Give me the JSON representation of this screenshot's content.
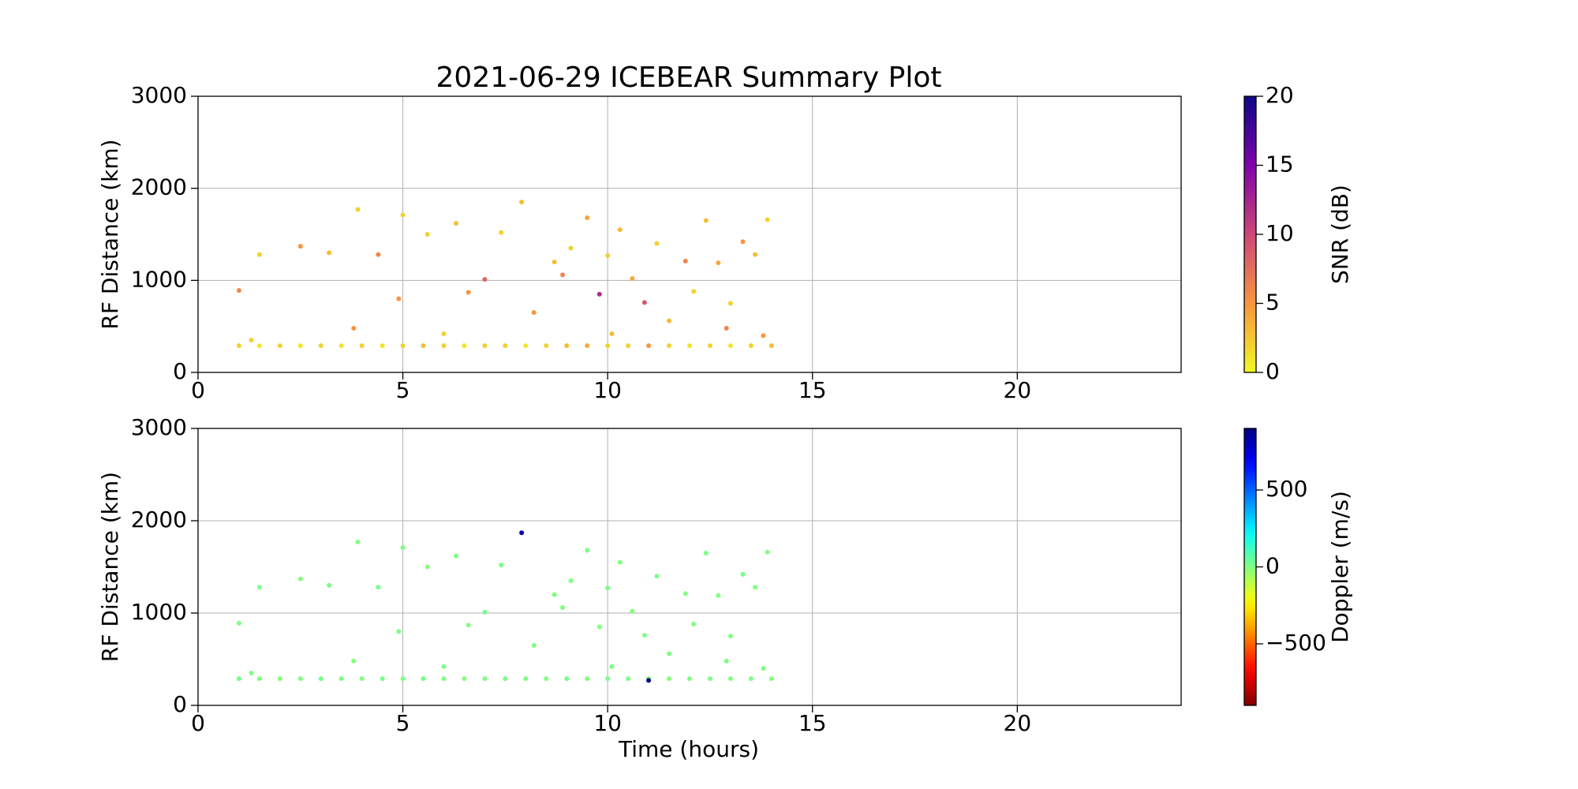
{
  "chart_data": [
    {
      "type": "scatter",
      "title": "2021-06-29 ICEBEAR Summary Plot",
      "ylabel": "RF Distance (km)",
      "xlim": [
        0,
        24
      ],
      "ylim": [
        0,
        3000
      ],
      "xticks": [
        0,
        5,
        10,
        15,
        20
      ],
      "yticks": [
        0,
        1000,
        2000,
        3000
      ],
      "grid": true,
      "colormap": "plasma_r",
      "colorbar_label": "SNR (dB)",
      "clim": [
        0,
        20
      ],
      "cticks": [
        0,
        5,
        10,
        15,
        20
      ],
      "x": [
        1,
        1.5,
        2,
        2.5,
        3,
        3.5,
        4,
        4.5,
        5,
        5.5,
        6,
        6.5,
        7,
        7.5,
        8,
        8.5,
        9,
        9.5,
        10,
        10.5,
        11,
        11.5,
        12,
        12.5,
        13,
        13.5,
        14,
        1,
        1.5,
        2.5,
        3.2,
        3.9,
        4.4,
        5,
        4.9,
        5.6,
        6.3,
        6.6,
        7,
        7.4,
        7.9,
        8.2,
        8.7,
        9.1,
        9.5,
        9.8,
        10,
        10.3,
        10.6,
        10.9,
        11.2,
        11.5,
        11.9,
        12.1,
        12.4,
        12.7,
        13,
        13.3,
        13.6,
        13.9,
        13.8,
        12.9,
        10.1,
        8.9,
        6,
        3.8,
        1.3
      ],
      "values": [
        290,
        290,
        290,
        290,
        290,
        290,
        290,
        290,
        290,
        290,
        290,
        290,
        290,
        290,
        290,
        290,
        290,
        290,
        290,
        290,
        290,
        290,
        290,
        290,
        290,
        290,
        290,
        890,
        1280,
        1370,
        1300,
        1770,
        1280,
        1710,
        800,
        1500,
        1620,
        870,
        1010,
        1520,
        1850,
        650,
        1200,
        1350,
        1680,
        850,
        1270,
        1550,
        1020,
        760,
        1400,
        560,
        1210,
        880,
        1650,
        1190,
        750,
        1420,
        1280,
        1660,
        400,
        480,
        420,
        1060,
        420,
        480,
        350
      ],
      "color_values": [
        2,
        1,
        2,
        1,
        2,
        1,
        2,
        1,
        2,
        3,
        2,
        1,
        2,
        2,
        1,
        2,
        3,
        4,
        2,
        2,
        5,
        2,
        1,
        2,
        1,
        2,
        3,
        6,
        2,
        5,
        3,
        2,
        6,
        2,
        5,
        2,
        3,
        5,
        8,
        2,
        3,
        5,
        3,
        2,
        4,
        12,
        2,
        3,
        4,
        9,
        2,
        3,
        6,
        2,
        3,
        4,
        2,
        5,
        3,
        2,
        5,
        6,
        3,
        6,
        2,
        5,
        2
      ]
    },
    {
      "type": "scatter",
      "xlabel": "Time (hours)",
      "ylabel": "RF Distance (km)",
      "xlim": [
        0,
        24
      ],
      "ylim": [
        0,
        3000
      ],
      "xticks": [
        0,
        5,
        10,
        15,
        20
      ],
      "yticks": [
        0,
        1000,
        2000,
        3000
      ],
      "grid": true,
      "colormap": "jet_r",
      "colorbar_label": "Doppler (m/s)",
      "clim": [
        -900,
        900
      ],
      "cticks": [
        {
          "value": -500,
          "label": "−500"
        },
        0,
        500
      ],
      "x": [
        1,
        1.5,
        2,
        2.5,
        3,
        3.5,
        4,
        4.5,
        5,
        5.5,
        6,
        6.5,
        7,
        7.5,
        8,
        8.5,
        9,
        9.5,
        10,
        10.5,
        11,
        11.5,
        12,
        12.5,
        13,
        13.5,
        14,
        1,
        1.5,
        2.5,
        3.2,
        3.9,
        4.4,
        5,
        4.9,
        5.6,
        6.3,
        6.6,
        7,
        7.4,
        7.9,
        8.2,
        8.7,
        9.1,
        9.5,
        9.8,
        10,
        10.3,
        10.6,
        10.9,
        11.2,
        11.5,
        11.9,
        12.1,
        12.4,
        12.7,
        13,
        13.3,
        13.6,
        13.9,
        13.8,
        12.9,
        10.1,
        8.9,
        6,
        3.8,
        1.3,
        11
      ],
      "values": [
        290,
        290,
        290,
        290,
        290,
        290,
        290,
        290,
        290,
        290,
        290,
        290,
        290,
        290,
        290,
        290,
        290,
        290,
        290,
        290,
        290,
        290,
        290,
        290,
        290,
        290,
        290,
        890,
        1280,
        1370,
        1300,
        1770,
        1280,
        1710,
        800,
        1500,
        1620,
        870,
        1010,
        1520,
        1870,
        650,
        1200,
        1350,
        1680,
        850,
        1270,
        1550,
        1020,
        760,
        1400,
        560,
        1210,
        880,
        1650,
        1190,
        750,
        1420,
        1280,
        1660,
        400,
        480,
        420,
        1060,
        420,
        480,
        350,
        270
      ],
      "color_values": [
        10,
        5,
        -10,
        0,
        15,
        5,
        -5,
        10,
        0,
        20,
        5,
        -10,
        0,
        10,
        5,
        0,
        15,
        -5,
        10,
        5,
        0,
        -10,
        5,
        10,
        0,
        5,
        -5,
        0,
        10,
        -5,
        5,
        0,
        10,
        5,
        0,
        -10,
        5,
        0,
        20,
        10,
        820,
        5,
        0,
        -5,
        10,
        0,
        15,
        5,
        -10,
        0,
        10,
        5,
        0,
        -5,
        10,
        5,
        0,
        15,
        5,
        -5,
        0,
        10,
        5,
        0,
        10,
        -5,
        0,
        880
      ]
    }
  ]
}
